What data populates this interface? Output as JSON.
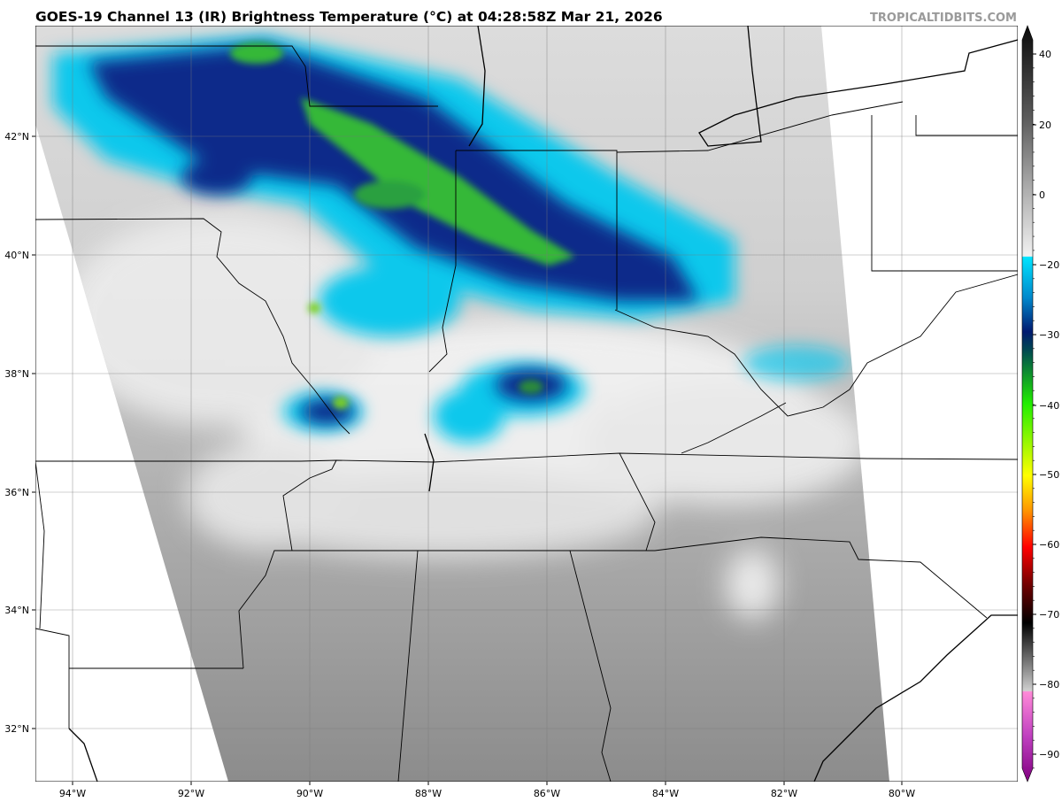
{
  "header": {
    "title": "GOES-19 Channel 13 (IR) Brightness Temperature (°C) at 04:28:58Z Mar 21, 2026",
    "watermark": "TROPICALTIDBITS.COM"
  },
  "map": {
    "lat_labels": [
      "42°N",
      "40°N",
      "38°N",
      "36°N",
      "34°N",
      "32°N"
    ],
    "lon_labels": [
      "94°W",
      "92°W",
      "90°W",
      "88°W",
      "86°W",
      "84°W",
      "82°W",
      "80°W"
    ]
  },
  "colorbar": {
    "labels": [
      "40",
      "20",
      "0",
      "−20",
      "−30",
      "−40",
      "−50",
      "−60",
      "−70",
      "−80",
      "−90"
    ]
  }
}
